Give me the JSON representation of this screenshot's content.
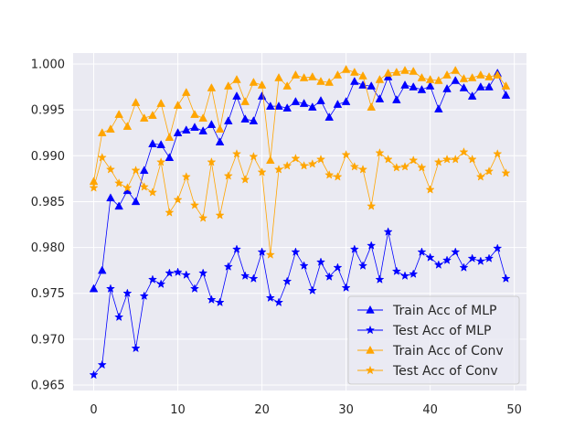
{
  "chart_data": {
    "type": "line",
    "title": "",
    "xlabel": "",
    "ylabel": "",
    "xlim": [
      -2.45,
      51.45
    ],
    "ylim": [
      0.9644,
      1.0012
    ],
    "grid": true,
    "legend_position": "lower-right",
    "x_ticks": [
      0,
      10,
      20,
      30,
      40,
      50
    ],
    "x_tick_labels": [
      "0",
      "10",
      "20",
      "30",
      "40",
      "50"
    ],
    "y_ticks": [
      0.965,
      0.97,
      0.975,
      0.98,
      0.985,
      0.99,
      0.995,
      1.0
    ],
    "y_tick_labels": [
      "0.965",
      "0.970",
      "0.975",
      "0.980",
      "0.985",
      "0.990",
      "0.995",
      "1.000"
    ],
    "x": [
      0,
      1,
      2,
      3,
      4,
      5,
      6,
      7,
      8,
      9,
      10,
      11,
      12,
      13,
      14,
      15,
      16,
      17,
      18,
      19,
      20,
      21,
      22,
      23,
      24,
      25,
      26,
      27,
      28,
      29,
      30,
      31,
      32,
      33,
      34,
      35,
      36,
      37,
      38,
      39,
      40,
      41,
      42,
      43,
      44,
      45,
      46,
      47,
      48,
      49
    ],
    "series": [
      {
        "name": "Train Acc of MLP",
        "color": "#0000ff",
        "marker": "triangle",
        "values": [
          0.9755,
          0.9775,
          0.9854,
          0.9845,
          0.9862,
          0.985,
          0.9884,
          0.9913,
          0.9912,
          0.9898,
          0.9925,
          0.9928,
          0.9931,
          0.9927,
          0.9934,
          0.9915,
          0.9938,
          0.9965,
          0.994,
          0.9938,
          0.9965,
          0.9954,
          0.9954,
          0.9952,
          0.9959,
          0.9957,
          0.9953,
          0.996,
          0.9942,
          0.9956,
          0.9959,
          0.9981,
          0.9977,
          0.9976,
          0.9962,
          0.9986,
          0.9961,
          0.9977,
          0.9975,
          0.9972,
          0.9976,
          0.9951,
          0.9973,
          0.9982,
          0.9974,
          0.9965,
          0.9975,
          0.9975,
          0.999,
          0.9966
        ]
      },
      {
        "name": "Test Acc of MLP",
        "color": "#0000ff",
        "marker": "star",
        "values": [
          0.9661,
          0.9672,
          0.9755,
          0.9724,
          0.975,
          0.969,
          0.9747,
          0.9765,
          0.976,
          0.9772,
          0.9773,
          0.977,
          0.9755,
          0.9772,
          0.9743,
          0.974,
          0.9779,
          0.9798,
          0.9769,
          0.9766,
          0.9795,
          0.9745,
          0.974,
          0.9763,
          0.9795,
          0.978,
          0.9753,
          0.9784,
          0.9768,
          0.9778,
          0.9756,
          0.9798,
          0.978,
          0.9802,
          0.9765,
          0.9817,
          0.9774,
          0.9769,
          0.9771,
          0.9795,
          0.9789,
          0.9781,
          0.9786,
          0.9795,
          0.9778,
          0.9788,
          0.9785,
          0.9788,
          0.9799,
          0.9766
        ]
      },
      {
        "name": "Train Acc of Conv",
        "color": "#ffa500",
        "marker": "triangle",
        "values": [
          0.9872,
          0.9925,
          0.9929,
          0.9945,
          0.9932,
          0.9958,
          0.9941,
          0.9944,
          0.9957,
          0.992,
          0.9955,
          0.9969,
          0.9945,
          0.9941,
          0.9974,
          0.9929,
          0.9976,
          0.9983,
          0.9959,
          0.998,
          0.9977,
          0.9895,
          0.9985,
          0.9976,
          0.9988,
          0.9985,
          0.9986,
          0.9981,
          0.998,
          0.9988,
          0.9994,
          0.9991,
          0.9987,
          0.9953,
          0.9983,
          0.999,
          0.9991,
          0.9993,
          0.9992,
          0.9985,
          0.9983,
          0.9982,
          0.9988,
          0.9993,
          0.9984,
          0.9985,
          0.9988,
          0.9986,
          0.9988,
          0.9976
        ]
      },
      {
        "name": "Test Acc of Conv",
        "color": "#ffa500",
        "marker": "star",
        "values": [
          0.9865,
          0.9898,
          0.9885,
          0.987,
          0.9865,
          0.9884,
          0.9866,
          0.986,
          0.9893,
          0.9838,
          0.9852,
          0.9877,
          0.9846,
          0.9832,
          0.9893,
          0.9835,
          0.9878,
          0.9902,
          0.9874,
          0.9899,
          0.9882,
          0.9792,
          0.9885,
          0.9889,
          0.9897,
          0.9889,
          0.9891,
          0.9896,
          0.9879,
          0.9877,
          0.9901,
          0.9888,
          0.9885,
          0.9845,
          0.9903,
          0.9896,
          0.9887,
          0.9888,
          0.9895,
          0.9887,
          0.9863,
          0.9893,
          0.9896,
          0.9896,
          0.9904,
          0.9896,
          0.9877,
          0.9883,
          0.9902,
          0.9881
        ]
      }
    ]
  }
}
